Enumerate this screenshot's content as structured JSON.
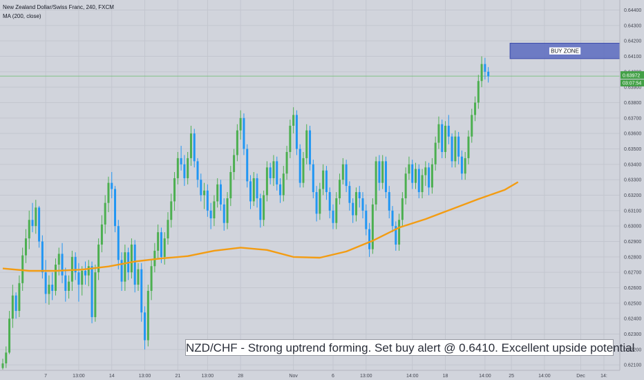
{
  "legend": {
    "symbol_line": "New Zealand Dollar/Swiss Franc, 240, FXCM",
    "indicator_line": "MA (200, close)"
  },
  "annotation_text": "NZD/CHF - Strong uptrend forming.  Set buy alert @ 0.6410.  Excellent upside potential",
  "colors": {
    "background": "#d1d4dc",
    "grid": "#c3c6cf",
    "up": "#4caf50",
    "down": "#2196f3",
    "ma": "#f39c12",
    "price_line": "#66bb6a",
    "zone_fill": "#5c6bc0",
    "zone_label_bg": "#ffffff"
  },
  "chart_data": {
    "type": "candlestick",
    "symbol": "New Zealand Dollar/Swiss Franc",
    "timeframe": "240",
    "source": "FXCM",
    "y_axis_ticks": [
      "0.64400",
      "0.64300",
      "0.64200",
      "0.64100",
      "0.64000",
      "0.63900",
      "0.63800",
      "0.63700",
      "0.63600",
      "0.63500",
      "0.63400",
      "0.63300",
      "0.63200",
      "0.63100",
      "0.63000",
      "0.62900",
      "0.62800",
      "0.62700",
      "0.62600",
      "0.62500",
      "0.62400",
      "0.62300",
      "0.62200",
      "0.62100"
    ],
    "y_tick_values": [
      0.644,
      0.643,
      0.642,
      0.641,
      0.64,
      0.639,
      0.638,
      0.637,
      0.636,
      0.635,
      0.634,
      0.633,
      0.632,
      0.631,
      0.63,
      0.629,
      0.628,
      0.627,
      0.626,
      0.625,
      0.624,
      0.623,
      0.622,
      0.621
    ],
    "ylim": [
      0.62065,
      0.64465
    ],
    "x_axis_ticks": [
      "7",
      "13:00",
      "14",
      "13:00",
      "21",
      "13:00",
      "28",
      "Nov",
      "6",
      "13:00",
      "14:00",
      "18",
      "14:00",
      "25",
      "14:00",
      "Dec",
      "14:"
    ],
    "x_tick_index": [
      13,
      23,
      33,
      43,
      53,
      62,
      72,
      88,
      100,
      110,
      124,
      134,
      146,
      154,
      164,
      175,
      182
    ],
    "current_price": {
      "label": "0.63972",
      "value": 0.63972
    },
    "countdown_label": "03:07:54",
    "buy_zone": {
      "label": "BUY ZONE",
      "low": 0.64085,
      "high": 0.64185,
      "start_index": 154
    },
    "moving_average": {
      "name": "MA (200, close)",
      "index": [
        0,
        8,
        16,
        24,
        32,
        40,
        48,
        56,
        64,
        72,
        80,
        88,
        96,
        104,
        112,
        120,
        128,
        136,
        144,
        152,
        156
      ],
      "values": [
        0.62725,
        0.6271,
        0.6271,
        0.62718,
        0.62738,
        0.6277,
        0.6279,
        0.62805,
        0.6284,
        0.6286,
        0.62845,
        0.628,
        0.62795,
        0.62835,
        0.62905,
        0.6299,
        0.63045,
        0.6311,
        0.63175,
        0.63235,
        0.63285
      ]
    },
    "candles": [
      [
        0.6208,
        0.6214,
        0.6207,
        0.6211
      ],
      [
        0.6211,
        0.6222,
        0.6208,
        0.6218
      ],
      [
        0.6218,
        0.6245,
        0.6217,
        0.624
      ],
      [
        0.624,
        0.6262,
        0.6234,
        0.6255
      ],
      [
        0.6255,
        0.6257,
        0.624,
        0.6245
      ],
      [
        0.6245,
        0.6268,
        0.6241,
        0.6263
      ],
      [
        0.6263,
        0.6286,
        0.6258,
        0.6281
      ],
      [
        0.6281,
        0.6298,
        0.6276,
        0.6292
      ],
      [
        0.6292,
        0.631,
        0.6285,
        0.6304
      ],
      [
        0.6304,
        0.6315,
        0.6296,
        0.63
      ],
      [
        0.63,
        0.6317,
        0.6295,
        0.6312
      ],
      [
        0.6312,
        0.6313,
        0.6286,
        0.629
      ],
      [
        0.629,
        0.6294,
        0.6266,
        0.627
      ],
      [
        0.627,
        0.6278,
        0.625,
        0.6256
      ],
      [
        0.6256,
        0.6268,
        0.6249,
        0.6262
      ],
      [
        0.6262,
        0.627,
        0.6252,
        0.6258
      ],
      [
        0.6258,
        0.6279,
        0.6255,
        0.6275
      ],
      [
        0.6275,
        0.6286,
        0.6268,
        0.6282
      ],
      [
        0.6282,
        0.6289,
        0.6263,
        0.6268
      ],
      [
        0.6268,
        0.6273,
        0.6251,
        0.6258
      ],
      [
        0.6258,
        0.6268,
        0.6253,
        0.6264
      ],
      [
        0.6264,
        0.6284,
        0.6258,
        0.628
      ],
      [
        0.628,
        0.6283,
        0.6265,
        0.627
      ],
      [
        0.627,
        0.6276,
        0.6251,
        0.6262
      ],
      [
        0.6262,
        0.6274,
        0.6255,
        0.6271
      ],
      [
        0.6271,
        0.6277,
        0.6262,
        0.6268
      ],
      [
        0.6268,
        0.6278,
        0.6261,
        0.6274
      ],
      [
        0.6274,
        0.6277,
        0.6237,
        0.6241
      ],
      [
        0.6241,
        0.6275,
        0.6238,
        0.627
      ],
      [
        0.627,
        0.6292,
        0.6265,
        0.6288
      ],
      [
        0.6288,
        0.6307,
        0.6283,
        0.6301
      ],
      [
        0.6301,
        0.632,
        0.6295,
        0.6315
      ],
      [
        0.6315,
        0.6332,
        0.6309,
        0.6328
      ],
      [
        0.6328,
        0.6335,
        0.6318,
        0.6324
      ],
      [
        0.6324,
        0.6326,
        0.6296,
        0.63
      ],
      [
        0.63,
        0.6304,
        0.6272,
        0.6278
      ],
      [
        0.6278,
        0.6283,
        0.6258,
        0.6264
      ],
      [
        0.6264,
        0.6288,
        0.6258,
        0.6283
      ],
      [
        0.6283,
        0.6286,
        0.6265,
        0.627
      ],
      [
        0.627,
        0.6292,
        0.6266,
        0.6288
      ],
      [
        0.6288,
        0.6291,
        0.6257,
        0.6262
      ],
      [
        0.6262,
        0.6276,
        0.6258,
        0.6272
      ],
      [
        0.6272,
        0.6276,
        0.6238,
        0.6244
      ],
      [
        0.6244,
        0.6248,
        0.622,
        0.6226
      ],
      [
        0.6226,
        0.6262,
        0.6222,
        0.6258
      ],
      [
        0.6258,
        0.6278,
        0.6252,
        0.6274
      ],
      [
        0.6274,
        0.6289,
        0.627,
        0.6284
      ],
      [
        0.6284,
        0.6301,
        0.6279,
        0.6296
      ],
      [
        0.6296,
        0.6299,
        0.6276,
        0.628
      ],
      [
        0.628,
        0.6296,
        0.6275,
        0.6292
      ],
      [
        0.6292,
        0.6309,
        0.6288,
        0.6304
      ],
      [
        0.6304,
        0.6321,
        0.6299,
        0.6316
      ],
      [
        0.6316,
        0.6335,
        0.631,
        0.6331
      ],
      [
        0.6331,
        0.6348,
        0.6327,
        0.6344
      ],
      [
        0.6344,
        0.6352,
        0.6336,
        0.634
      ],
      [
        0.634,
        0.6346,
        0.6326,
        0.6331
      ],
      [
        0.6331,
        0.6348,
        0.6327,
        0.6344
      ],
      [
        0.6344,
        0.6365,
        0.6339,
        0.636
      ],
      [
        0.636,
        0.6363,
        0.6338,
        0.6342
      ],
      [
        0.6342,
        0.6344,
        0.6325,
        0.633
      ],
      [
        0.633,
        0.6334,
        0.6316,
        0.632
      ],
      [
        0.632,
        0.6328,
        0.6311,
        0.6323
      ],
      [
        0.6323,
        0.6327,
        0.6306,
        0.631
      ],
      [
        0.631,
        0.6315,
        0.6298,
        0.6305
      ],
      [
        0.6305,
        0.632,
        0.63,
        0.6316
      ],
      [
        0.6316,
        0.6331,
        0.6312,
        0.6327
      ],
      [
        0.6327,
        0.633,
        0.631,
        0.6314
      ],
      [
        0.6314,
        0.6318,
        0.6297,
        0.6302
      ],
      [
        0.6302,
        0.6322,
        0.6298,
        0.6318
      ],
      [
        0.6318,
        0.6339,
        0.6313,
        0.6335
      ],
      [
        0.6335,
        0.635,
        0.633,
        0.6346
      ],
      [
        0.6346,
        0.6366,
        0.6342,
        0.6362
      ],
      [
        0.6362,
        0.6375,
        0.6356,
        0.637
      ],
      [
        0.637,
        0.6373,
        0.6346,
        0.635
      ],
      [
        0.635,
        0.6353,
        0.6325,
        0.6329
      ],
      [
        0.6329,
        0.6333,
        0.6311,
        0.6316
      ],
      [
        0.6316,
        0.6335,
        0.6313,
        0.6331
      ],
      [
        0.6331,
        0.6334,
        0.6312,
        0.6318
      ],
      [
        0.6318,
        0.6321,
        0.6299,
        0.6304
      ],
      [
        0.6304,
        0.6323,
        0.63,
        0.632
      ],
      [
        0.632,
        0.6342,
        0.6316,
        0.6338
      ],
      [
        0.6338,
        0.6341,
        0.6327,
        0.6331
      ],
      [
        0.6331,
        0.6346,
        0.6326,
        0.6342
      ],
      [
        0.6342,
        0.6345,
        0.6323,
        0.6327
      ],
      [
        0.6327,
        0.6331,
        0.6315,
        0.632
      ],
      [
        0.632,
        0.6339,
        0.6316,
        0.6334
      ],
      [
        0.6334,
        0.6352,
        0.633,
        0.6348
      ],
      [
        0.6348,
        0.6369,
        0.6344,
        0.6365
      ],
      [
        0.6365,
        0.6377,
        0.636,
        0.6372
      ],
      [
        0.6372,
        0.6375,
        0.6346,
        0.635
      ],
      [
        0.635,
        0.6353,
        0.6325,
        0.6328
      ],
      [
        0.6328,
        0.6348,
        0.6325,
        0.6344
      ],
      [
        0.6344,
        0.6366,
        0.634,
        0.6362
      ],
      [
        0.6362,
        0.6365,
        0.6336,
        0.634
      ],
      [
        0.634,
        0.6343,
        0.6318,
        0.6322
      ],
      [
        0.6322,
        0.6326,
        0.6303,
        0.6308
      ],
      [
        0.6308,
        0.6328,
        0.6304,
        0.6324
      ],
      [
        0.6324,
        0.634,
        0.632,
        0.6336
      ],
      [
        0.6336,
        0.6339,
        0.6317,
        0.6322
      ],
      [
        0.6322,
        0.6325,
        0.6305,
        0.631
      ],
      [
        0.631,
        0.6314,
        0.6298,
        0.6302
      ],
      [
        0.6302,
        0.6322,
        0.6298,
        0.6318
      ],
      [
        0.6318,
        0.6334,
        0.6314,
        0.633
      ],
      [
        0.633,
        0.6344,
        0.6327,
        0.634
      ],
      [
        0.634,
        0.6343,
        0.6322,
        0.6326
      ],
      [
        0.6326,
        0.6329,
        0.631,
        0.6315
      ],
      [
        0.6315,
        0.6318,
        0.6302,
        0.6307
      ],
      [
        0.6307,
        0.6325,
        0.6303,
        0.6322
      ],
      [
        0.6322,
        0.6326,
        0.6312,
        0.6318
      ],
      [
        0.6318,
        0.6322,
        0.6305,
        0.631
      ],
      [
        0.631,
        0.6314,
        0.6294,
        0.6298
      ],
      [
        0.6298,
        0.6302,
        0.628,
        0.6285
      ],
      [
        0.6285,
        0.6318,
        0.6282,
        0.6314
      ],
      [
        0.6314,
        0.6345,
        0.631,
        0.6342
      ],
      [
        0.6342,
        0.6346,
        0.6323,
        0.6328
      ],
      [
        0.6328,
        0.6346,
        0.6324,
        0.6342
      ],
      [
        0.6342,
        0.6345,
        0.6318,
        0.6322
      ],
      [
        0.6322,
        0.6326,
        0.6305,
        0.631
      ],
      [
        0.631,
        0.6313,
        0.6296,
        0.63
      ],
      [
        0.63,
        0.6303,
        0.6284,
        0.6288
      ],
      [
        0.6288,
        0.6308,
        0.6284,
        0.6304
      ],
      [
        0.6304,
        0.6322,
        0.63,
        0.6318
      ],
      [
        0.6318,
        0.6338,
        0.6314,
        0.6334
      ],
      [
        0.6334,
        0.6345,
        0.633,
        0.634
      ],
      [
        0.634,
        0.6343,
        0.6324,
        0.6328
      ],
      [
        0.6328,
        0.6341,
        0.6324,
        0.6337
      ],
      [
        0.6337,
        0.634,
        0.6318,
        0.6322
      ],
      [
        0.6322,
        0.6337,
        0.6318,
        0.6333
      ],
      [
        0.6333,
        0.6342,
        0.6326,
        0.6338
      ],
      [
        0.6338,
        0.6341,
        0.632,
        0.6325
      ],
      [
        0.6325,
        0.6344,
        0.6321,
        0.634
      ],
      [
        0.634,
        0.6358,
        0.6336,
        0.6354
      ],
      [
        0.6354,
        0.6371,
        0.635,
        0.6366
      ],
      [
        0.6366,
        0.6369,
        0.6344,
        0.6348
      ],
      [
        0.6348,
        0.6368,
        0.6344,
        0.6365
      ],
      [
        0.6365,
        0.6372,
        0.6353,
        0.6358
      ],
      [
        0.6358,
        0.636,
        0.6338,
        0.6342
      ],
      [
        0.6342,
        0.6362,
        0.6338,
        0.6358
      ],
      [
        0.6358,
        0.6361,
        0.634,
        0.6345
      ],
      [
        0.6345,
        0.6349,
        0.633,
        0.6334
      ],
      [
        0.6334,
        0.6348,
        0.633,
        0.6344
      ],
      [
        0.6344,
        0.6362,
        0.634,
        0.6358
      ],
      [
        0.6358,
        0.6376,
        0.6354,
        0.6372
      ],
      [
        0.6372,
        0.6384,
        0.6368,
        0.638
      ],
      [
        0.638,
        0.6398,
        0.6376,
        0.6394
      ],
      [
        0.6394,
        0.641,
        0.639,
        0.6405
      ],
      [
        0.6405,
        0.6409,
        0.6395,
        0.64
      ],
      [
        0.64,
        0.6403,
        0.6393,
        0.6397
      ]
    ]
  }
}
